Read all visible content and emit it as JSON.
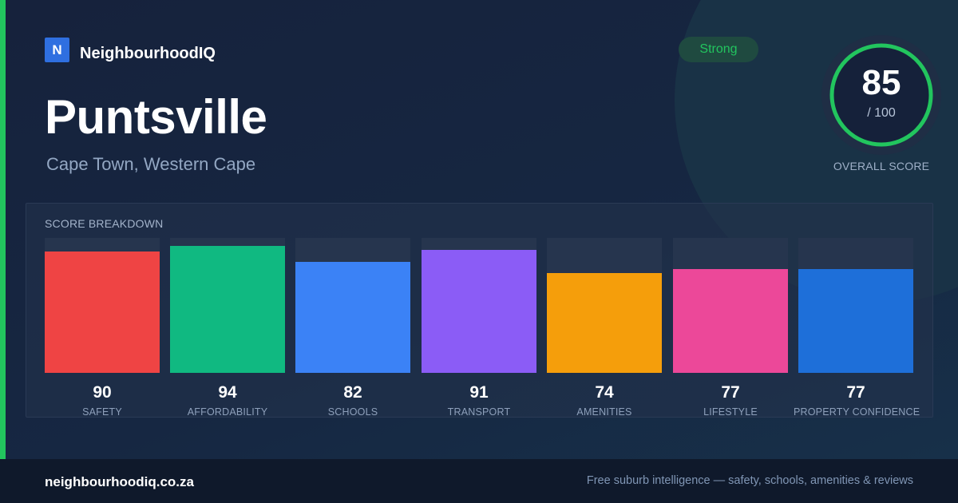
{
  "brand": {
    "logo_letter": "N",
    "name": "NeighbourhoodIQ"
  },
  "suburb": {
    "name": "Puntsville",
    "location": "Cape Town, Western Cape"
  },
  "badge": {
    "label": "Strong",
    "color": "#22c55e"
  },
  "overall": {
    "score": "85",
    "max_label": "/ 100",
    "fraction": 0.85,
    "caption": "OVERALL SCORE",
    "ring_color": "#22c55e"
  },
  "breakdown": {
    "title": "SCORE BREAKDOWN",
    "max": 100,
    "items": [
      {
        "label": "SAFETY",
        "value": 90,
        "color": "#ef4444"
      },
      {
        "label": "AFFORDABILITY",
        "value": 94,
        "color": "#10b981"
      },
      {
        "label": "SCHOOLS",
        "value": 82,
        "color": "#3b82f6"
      },
      {
        "label": "TRANSPORT",
        "value": 91,
        "color": "#8b5cf6"
      },
      {
        "label": "AMENITIES",
        "value": 74,
        "color": "#f59e0b"
      },
      {
        "label": "LIFESTYLE",
        "value": 77,
        "color": "#ec4899"
      },
      {
        "label": "PROPERTY CONFIDENCE",
        "value": 77,
        "color": "#1e6fd9"
      }
    ]
  },
  "footer": {
    "url": "neighbourhoodiq.co.za",
    "tagline": "Free suburb intelligence — safety, schools, amenities & reviews"
  },
  "colors": {
    "accent": "#22c55e",
    "background": "#15213a"
  }
}
